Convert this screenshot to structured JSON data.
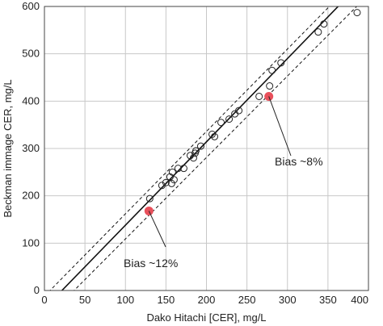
{
  "chart_data": {
    "type": "scatter",
    "xlabel": "Dako Hitachi [CER], mg/L",
    "ylabel": "Beckman immage CER, mg/L",
    "xlim": [
      0,
      400
    ],
    "ylim": [
      0,
      600
    ],
    "xticks": [
      0,
      50,
      100,
      150,
      200,
      250,
      300,
      350,
      400
    ],
    "yticks": [
      0,
      100,
      200,
      300,
      400,
      500,
      600
    ],
    "grid": true,
    "points": [
      {
        "x": 130,
        "y": 194
      },
      {
        "x": 145,
        "y": 222
      },
      {
        "x": 150,
        "y": 228
      },
      {
        "x": 155,
        "y": 240
      },
      {
        "x": 157,
        "y": 226
      },
      {
        "x": 160,
        "y": 234
      },
      {
        "x": 158,
        "y": 250
      },
      {
        "x": 165,
        "y": 258
      },
      {
        "x": 172,
        "y": 258
      },
      {
        "x": 180,
        "y": 285
      },
      {
        "x": 184,
        "y": 280
      },
      {
        "x": 187,
        "y": 295
      },
      {
        "x": 186,
        "y": 290
      },
      {
        "x": 193,
        "y": 305
      },
      {
        "x": 207,
        "y": 330
      },
      {
        "x": 210,
        "y": 325
      },
      {
        "x": 218,
        "y": 355
      },
      {
        "x": 228,
        "y": 362
      },
      {
        "x": 235,
        "y": 373
      },
      {
        "x": 240,
        "y": 380
      },
      {
        "x": 265,
        "y": 410
      },
      {
        "x": 278,
        "y": 432
      },
      {
        "x": 281,
        "y": 465
      },
      {
        "x": 292,
        "y": 481
      },
      {
        "x": 338,
        "y": 546
      },
      {
        "x": 345,
        "y": 563
      },
      {
        "x": 386,
        "y": 587
      }
    ],
    "highlight_points": [
      {
        "x": 129,
        "y": 168,
        "color": "#e8505b"
      },
      {
        "x": 277,
        "y": 410,
        "color": "#e8505b"
      }
    ],
    "lines": {
      "regression": {
        "slope": 1.76,
        "intercept": -38,
        "style": "solid"
      },
      "upper": {
        "slope": 1.74,
        "intercept": -12,
        "style": "dashed"
      },
      "lower": {
        "slope": 1.72,
        "intercept": -63,
        "style": "dashed"
      }
    },
    "annotations": [
      {
        "text": "Bias ~8%",
        "point_index": 1
      },
      {
        "text": "Bias ~12%",
        "point_index": 0
      }
    ]
  }
}
